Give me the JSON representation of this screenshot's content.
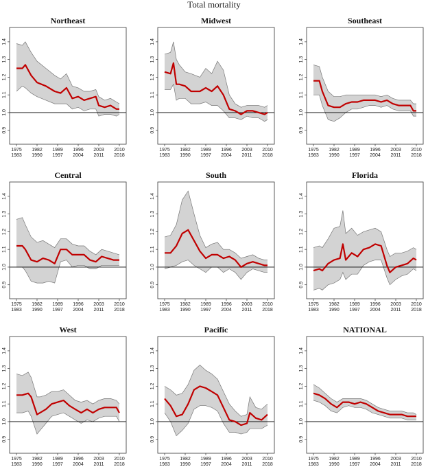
{
  "title": "Total mortality",
  "x_ticks_top": [
    "1975",
    "1982",
    "1989",
    "1996",
    "2003",
    "2010"
  ],
  "x_ticks_bottom": [
    "1983",
    "1990",
    "1997",
    "2004",
    "2011",
    "2018"
  ],
  "y_ticks": [
    "0.9",
    "1.0",
    "1.1",
    "1.2",
    "1.3",
    "1.4"
  ],
  "colors": {
    "line": "#c00000",
    "band": "#d3d3d3",
    "band_edge": "#777777",
    "reference": "#000000"
  },
  "chart_data": [
    {
      "type": "line",
      "title": "Northeast",
      "ylim": [
        0.86,
        1.45
      ],
      "reference_line": 1.0,
      "x": [
        1975,
        1977,
        1978,
        1980,
        1982,
        1985,
        1988,
        1990,
        1992,
        1994,
        1996,
        1998,
        2000,
        2002,
        2003,
        2005,
        2007,
        2009,
        2010
      ],
      "values": [
        1.25,
        1.25,
        1.27,
        1.21,
        1.17,
        1.15,
        1.12,
        1.11,
        1.14,
        1.08,
        1.09,
        1.07,
        1.08,
        1.09,
        1.04,
        1.03,
        1.04,
        1.02,
        1.02
      ],
      "upper": [
        1.39,
        1.38,
        1.4,
        1.34,
        1.29,
        1.25,
        1.21,
        1.19,
        1.22,
        1.15,
        1.14,
        1.12,
        1.12,
        1.13,
        1.09,
        1.07,
        1.08,
        1.06,
        1.05
      ],
      "lower": [
        1.12,
        1.15,
        1.14,
        1.11,
        1.09,
        1.07,
        1.05,
        1.05,
        1.05,
        1.02,
        1.03,
        1.01,
        1.02,
        1.02,
        0.98,
        0.99,
        0.99,
        0.98,
        0.99
      ]
    },
    {
      "type": "line",
      "title": "Midwest",
      "ylim": [
        0.86,
        1.45
      ],
      "reference_line": 1.0,
      "x": [
        1975,
        1977,
        1978,
        1979,
        1980,
        1982,
        1984,
        1987,
        1989,
        1991,
        1993,
        1995,
        1997,
        1999,
        2001,
        2003,
        2005,
        2007,
        2009,
        2010
      ],
      "values": [
        1.23,
        1.22,
        1.28,
        1.16,
        1.16,
        1.15,
        1.12,
        1.12,
        1.14,
        1.12,
        1.15,
        1.1,
        1.02,
        1.01,
        0.99,
        1.01,
        1.01,
        1.0,
        0.99,
        1.0
      ],
      "upper": [
        1.33,
        1.34,
        1.4,
        1.3,
        1.27,
        1.23,
        1.22,
        1.2,
        1.25,
        1.22,
        1.29,
        1.24,
        1.1,
        1.05,
        1.03,
        1.04,
        1.04,
        1.04,
        1.03,
        1.04
      ],
      "lower": [
        1.13,
        1.13,
        1.16,
        1.07,
        1.08,
        1.08,
        1.05,
        1.05,
        1.06,
        1.04,
        1.04,
        1.01,
        0.97,
        0.97,
        0.96,
        0.98,
        0.97,
        0.97,
        0.95,
        0.96
      ]
    },
    {
      "type": "line",
      "title": "Southeast",
      "ylim": [
        0.86,
        1.45
      ],
      "reference_line": 1.0,
      "x": [
        1975,
        1977,
        1978,
        1980,
        1982,
        1984,
        1986,
        1988,
        1990,
        1992,
        1994,
        1996,
        1998,
        2000,
        2002,
        2004,
        2006,
        2008,
        2009,
        2010
      ],
      "values": [
        1.18,
        1.18,
        1.12,
        1.04,
        1.03,
        1.03,
        1.05,
        1.06,
        1.06,
        1.07,
        1.07,
        1.07,
        1.06,
        1.07,
        1.05,
        1.04,
        1.04,
        1.04,
        1.01,
        1.01
      ],
      "upper": [
        1.27,
        1.26,
        1.2,
        1.12,
        1.09,
        1.09,
        1.1,
        1.1,
        1.1,
        1.1,
        1.1,
        1.1,
        1.09,
        1.1,
        1.08,
        1.07,
        1.07,
        1.07,
        1.05,
        1.05
      ],
      "lower": [
        1.1,
        1.1,
        1.04,
        0.96,
        0.95,
        0.97,
        1.0,
        1.02,
        1.02,
        1.03,
        1.04,
        1.04,
        1.03,
        1.04,
        1.02,
        1.01,
        1.01,
        1.01,
        0.98,
        0.98
      ]
    },
    {
      "type": "line",
      "title": "Central",
      "ylim": [
        0.86,
        1.45
      ],
      "reference_line": 1.0,
      "x": [
        1975,
        1977,
        1978,
        1980,
        1982,
        1984,
        1986,
        1988,
        1990,
        1992,
        1994,
        1996,
        1998,
        2000,
        2002,
        2004,
        2006,
        2008,
        2010
      ],
      "values": [
        1.12,
        1.12,
        1.1,
        1.04,
        1.03,
        1.05,
        1.04,
        1.02,
        1.1,
        1.1,
        1.07,
        1.07,
        1.07,
        1.04,
        1.03,
        1.06,
        1.05,
        1.04,
        1.04
      ],
      "upper": [
        1.27,
        1.28,
        1.24,
        1.17,
        1.14,
        1.15,
        1.13,
        1.11,
        1.16,
        1.16,
        1.13,
        1.12,
        1.12,
        1.09,
        1.07,
        1.1,
        1.09,
        1.08,
        1.07
      ],
      "lower": [
        1.0,
        1.0,
        0.98,
        0.92,
        0.91,
        0.91,
        0.92,
        0.91,
        1.03,
        1.04,
        1.0,
        1.01,
        1.01,
        0.99,
        0.99,
        1.01,
        1.01,
        1.01,
        1.01
      ]
    },
    {
      "type": "line",
      "title": "South",
      "ylim": [
        0.86,
        1.45
      ],
      "reference_line": 1.0,
      "x": [
        1975,
        1977,
        1979,
        1981,
        1983,
        1985,
        1987,
        1989,
        1991,
        1993,
        1995,
        1997,
        1999,
        2001,
        2003,
        2005,
        2007,
        2009,
        2010
      ],
      "values": [
        1.08,
        1.08,
        1.12,
        1.19,
        1.21,
        1.15,
        1.09,
        1.05,
        1.07,
        1.07,
        1.05,
        1.06,
        1.04,
        1.0,
        1.02,
        1.03,
        1.02,
        1.01,
        1.01
      ],
      "upper": [
        1.17,
        1.18,
        1.24,
        1.38,
        1.43,
        1.3,
        1.18,
        1.11,
        1.13,
        1.14,
        1.1,
        1.1,
        1.08,
        1.05,
        1.06,
        1.07,
        1.05,
        1.04,
        1.04
      ],
      "lower": [
        0.99,
        1.0,
        1.01,
        1.03,
        1.04,
        1.01,
        0.99,
        0.97,
        1.0,
        1.0,
        0.97,
        0.99,
        0.97,
        0.93,
        0.97,
        0.99,
        0.98,
        0.97,
        0.97
      ]
    },
    {
      "type": "line",
      "title": "Florida",
      "ylim": [
        0.86,
        1.45
      ],
      "reference_line": 1.0,
      "x": [
        1975,
        1977,
        1978,
        1980,
        1982,
        1984,
        1985,
        1986,
        1988,
        1990,
        1992,
        1994,
        1996,
        1998,
        2000,
        2001,
        2003,
        2005,
        2007,
        2009,
        2010
      ],
      "values": [
        0.98,
        0.99,
        0.98,
        1.02,
        1.04,
        1.05,
        1.13,
        1.04,
        1.08,
        1.06,
        1.1,
        1.11,
        1.13,
        1.12,
        1.01,
        0.97,
        1.0,
        1.01,
        1.02,
        1.05,
        1.04
      ],
      "upper": [
        1.11,
        1.12,
        1.11,
        1.16,
        1.22,
        1.23,
        1.32,
        1.19,
        1.22,
        1.18,
        1.2,
        1.21,
        1.22,
        1.2,
        1.1,
        1.06,
        1.08,
        1.08,
        1.09,
        1.11,
        1.1
      ],
      "lower": [
        0.87,
        0.88,
        0.87,
        0.9,
        0.91,
        0.93,
        0.97,
        0.93,
        0.96,
        0.96,
        1.01,
        1.03,
        1.04,
        1.04,
        0.94,
        0.9,
        0.93,
        0.95,
        0.96,
        0.99,
        0.98
      ]
    },
    {
      "type": "line",
      "title": "West",
      "ylim": [
        0.86,
        1.45
      ],
      "reference_line": 1.0,
      "x": [
        1975,
        1977,
        1979,
        1980,
        1982,
        1983,
        1985,
        1987,
        1989,
        1991,
        1993,
        1995,
        1997,
        1999,
        2001,
        2003,
        2005,
        2007,
        2009,
        2010
      ],
      "values": [
        1.15,
        1.15,
        1.16,
        1.14,
        1.04,
        1.05,
        1.07,
        1.1,
        1.11,
        1.12,
        1.09,
        1.07,
        1.05,
        1.07,
        1.05,
        1.07,
        1.08,
        1.08,
        1.08,
        1.05
      ],
      "upper": [
        1.27,
        1.26,
        1.28,
        1.25,
        1.14,
        1.14,
        1.15,
        1.17,
        1.17,
        1.18,
        1.15,
        1.12,
        1.11,
        1.12,
        1.1,
        1.12,
        1.13,
        1.13,
        1.12,
        1.1
      ],
      "lower": [
        1.05,
        1.05,
        1.06,
        1.03,
        0.93,
        0.95,
        0.99,
        1.03,
        1.04,
        1.05,
        1.03,
        1.01,
        0.99,
        1.01,
        1.0,
        1.02,
        1.03,
        1.03,
        1.03,
        1.0
      ]
    },
    {
      "type": "line",
      "title": "Pacific",
      "ylim": [
        0.86,
        1.45
      ],
      "reference_line": 1.0,
      "x": [
        1975,
        1977,
        1979,
        1981,
        1983,
        1985,
        1987,
        1989,
        1991,
        1993,
        1995,
        1997,
        1999,
        2001,
        2003,
        2004,
        2006,
        2008,
        2010
      ],
      "values": [
        1.13,
        1.09,
        1.03,
        1.04,
        1.1,
        1.18,
        1.2,
        1.19,
        1.17,
        1.15,
        1.08,
        1.01,
        1.0,
        0.98,
        0.99,
        1.05,
        1.02,
        1.01,
        1.04
      ],
      "upper": [
        1.2,
        1.18,
        1.15,
        1.16,
        1.21,
        1.29,
        1.32,
        1.29,
        1.27,
        1.24,
        1.17,
        1.1,
        1.06,
        1.03,
        1.04,
        1.14,
        1.08,
        1.07,
        1.1
      ],
      "lower": [
        1.05,
        1.0,
        0.92,
        0.95,
        0.99,
        1.07,
        1.09,
        1.09,
        1.08,
        1.06,
        0.99,
        0.94,
        0.94,
        0.93,
        0.94,
        0.96,
        0.96,
        0.96,
        0.98
      ]
    },
    {
      "type": "line",
      "title": "NATIONAL",
      "ylim": [
        0.86,
        1.45
      ],
      "reference_line": 1.0,
      "x": [
        1975,
        1977,
        1979,
        1981,
        1983,
        1985,
        1987,
        1989,
        1991,
        1993,
        1995,
        1997,
        1999,
        2001,
        2003,
        2005,
        2007,
        2009,
        2010
      ],
      "values": [
        1.16,
        1.15,
        1.13,
        1.1,
        1.08,
        1.11,
        1.11,
        1.1,
        1.11,
        1.1,
        1.08,
        1.06,
        1.05,
        1.04,
        1.04,
        1.04,
        1.03,
        1.03,
        1.03
      ],
      "upper": [
        1.21,
        1.19,
        1.16,
        1.13,
        1.11,
        1.13,
        1.13,
        1.13,
        1.13,
        1.12,
        1.1,
        1.08,
        1.07,
        1.06,
        1.06,
        1.06,
        1.05,
        1.05,
        1.04
      ],
      "lower": [
        1.12,
        1.11,
        1.09,
        1.06,
        1.05,
        1.08,
        1.09,
        1.08,
        1.08,
        1.07,
        1.05,
        1.04,
        1.03,
        1.02,
        1.02,
        1.02,
        1.01,
        1.01,
        1.01
      ]
    }
  ]
}
